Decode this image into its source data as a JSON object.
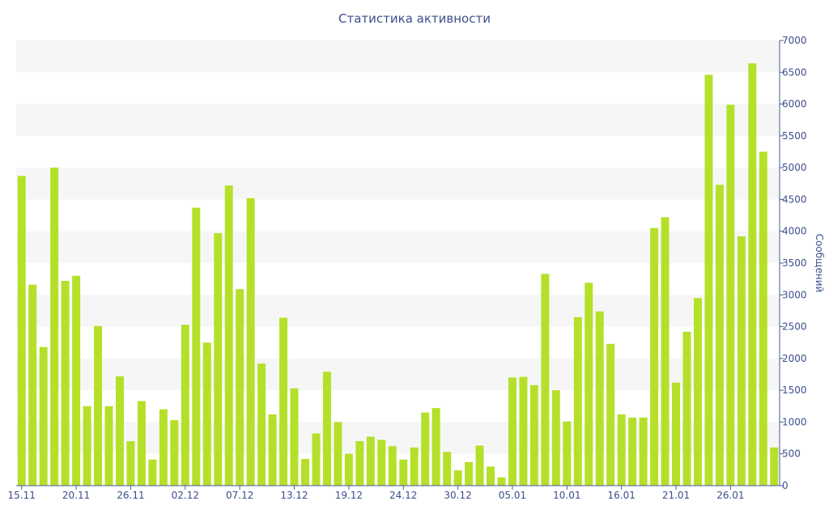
{
  "chart_data": {
    "type": "bar",
    "title": "Статистика активности",
    "ylabel": "Сообщений",
    "xlabel": "",
    "ylim": [
      0,
      7000
    ],
    "yticks": [
      0,
      500,
      1000,
      1500,
      2000,
      2500,
      3000,
      3500,
      4000,
      4500,
      5000,
      5500,
      6000,
      6500,
      7000
    ],
    "xtick_labels": [
      {
        "index": 0,
        "label": "15.11"
      },
      {
        "index": 5,
        "label": "20.11"
      },
      {
        "index": 10,
        "label": "26.11"
      },
      {
        "index": 15,
        "label": "02.12"
      },
      {
        "index": 20,
        "label": "07.12"
      },
      {
        "index": 25,
        "label": "13.12"
      },
      {
        "index": 30,
        "label": "19.12"
      },
      {
        "index": 35,
        "label": "24.12"
      },
      {
        "index": 40,
        "label": "30.12"
      },
      {
        "index": 45,
        "label": "05.01"
      },
      {
        "index": 50,
        "label": "10.01"
      },
      {
        "index": 55,
        "label": "16.01"
      },
      {
        "index": 60,
        "label": "21.01"
      },
      {
        "index": 65,
        "label": "26.01"
      }
    ],
    "values": [
      4870,
      3160,
      2180,
      5000,
      3220,
      3300,
      1250,
      2510,
      1250,
      1720,
      700,
      1330,
      410,
      1200,
      1030,
      2530,
      4370,
      2250,
      3970,
      4720,
      3090,
      4520,
      1920,
      1120,
      2640,
      1530,
      420,
      820,
      1790,
      1000,
      500,
      700,
      770,
      720,
      620,
      410,
      600,
      1150,
      1220,
      530,
      240,
      370,
      630,
      300,
      130,
      1700,
      1710,
      1580,
      3330,
      1500,
      1010,
      2650,
      3190,
      2740,
      2230,
      1120,
      1070,
      1070,
      4050,
      4220,
      1620,
      2420,
      2950,
      6460,
      4730,
      5990,
      3920,
      6640,
      5250,
      600
    ],
    "bar_color": "#b5e02a",
    "band_color": "#f6f6f6",
    "text_color": "#3e4e8c",
    "grid": true,
    "legend": "none"
  }
}
